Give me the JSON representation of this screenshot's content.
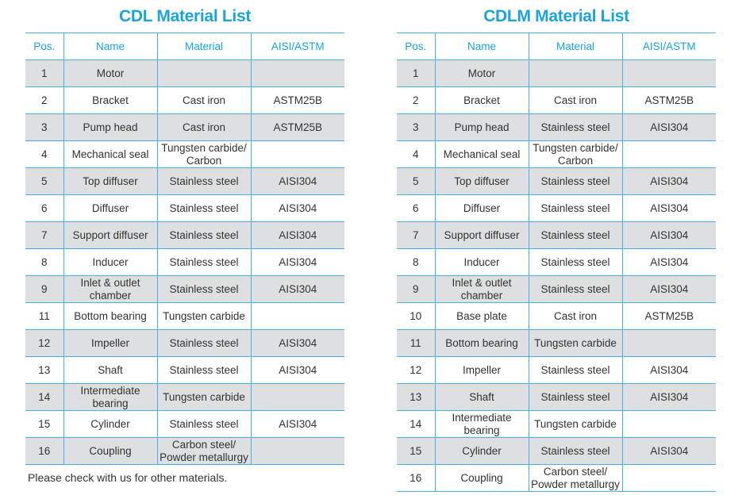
{
  "tables": [
    {
      "title": "CDL Material List",
      "headers": [
        "Pos.",
        "Name",
        "Material",
        "AISI/ASTM"
      ],
      "rows": [
        [
          "1",
          "Motor",
          "",
          ""
        ],
        [
          "2",
          "Bracket",
          "Cast iron",
          "ASTM25B"
        ],
        [
          "3",
          "Pump head",
          "Cast iron",
          "ASTM25B"
        ],
        [
          "4",
          "Mechanical seal",
          "Tungsten carbide/ Carbon",
          ""
        ],
        [
          "5",
          "Top diffuser",
          "Stainless steel",
          "AISI304"
        ],
        [
          "6",
          "Diffuser",
          "Stainless steel",
          "AISI304"
        ],
        [
          "7",
          "Support diffuser",
          "Stainless steel",
          "AISI304"
        ],
        [
          "8",
          "Inducer",
          "Stainless steel",
          "AISI304"
        ],
        [
          "9",
          "Inlet & outlet chamber",
          "Stainless steel",
          "AISI304"
        ],
        [
          "11",
          "Bottom bearing",
          "Tungsten carbide",
          ""
        ],
        [
          "12",
          "Impeller",
          "Stainless steel",
          "AISI304"
        ],
        [
          "13",
          "Shaft",
          "Stainless steel",
          "AISI304"
        ],
        [
          "14",
          "Intermediate bearing",
          "Tungsten carbide",
          ""
        ],
        [
          "15",
          "Cylinder",
          "Stainless steel",
          "AISI304"
        ],
        [
          "16",
          "Coupling",
          "Carbon steel/ Powder metallurgy",
          ""
        ]
      ]
    },
    {
      "title": "CDLM Material List",
      "headers": [
        "Pos.",
        "Name",
        "Material",
        "AISI/ASTM"
      ],
      "rows": [
        [
          "1",
          "Motor",
          "",
          ""
        ],
        [
          "2",
          "Bracket",
          "Cast iron",
          "ASTM25B"
        ],
        [
          "3",
          "Pump head",
          "Stainless steel",
          "AISI304"
        ],
        [
          "4",
          "Mechanical seal",
          "Tungsten carbide/ Carbon",
          ""
        ],
        [
          "5",
          "Top diffuser",
          "Stainless steel",
          "AISI304"
        ],
        [
          "6",
          "Diffuser",
          "Stainless steel",
          "AISI304"
        ],
        [
          "7",
          "Support diffuser",
          "Stainless steel",
          "AISI304"
        ],
        [
          "8",
          "Inducer",
          "Stainless steel",
          "AISI304"
        ],
        [
          "9",
          "Inlet & outlet chamber",
          "Stainless steel",
          "AISI304"
        ],
        [
          "10",
          "Base plate",
          "Cast iron",
          "ASTM25B"
        ],
        [
          "11",
          "Bottom bearing",
          "Tungsten carbide",
          ""
        ],
        [
          "12",
          "Impeller",
          "Stainless steel",
          "AISI304"
        ],
        [
          "13",
          "Shaft",
          "Stainless steel",
          "AISI304"
        ],
        [
          "14",
          "Intermediate bearing",
          "Tungsten carbide",
          ""
        ],
        [
          "15",
          "Cylinder",
          "Stainless steel",
          "AISI304"
        ],
        [
          "16",
          "Coupling",
          "Carbon steel/ Powder metallurgy",
          ""
        ]
      ]
    }
  ],
  "note": "Please check with us for other materials.",
  "colors": {
    "accent": "#1aa3dc",
    "row_shade": "#dedfe0",
    "text": "#333333"
  }
}
